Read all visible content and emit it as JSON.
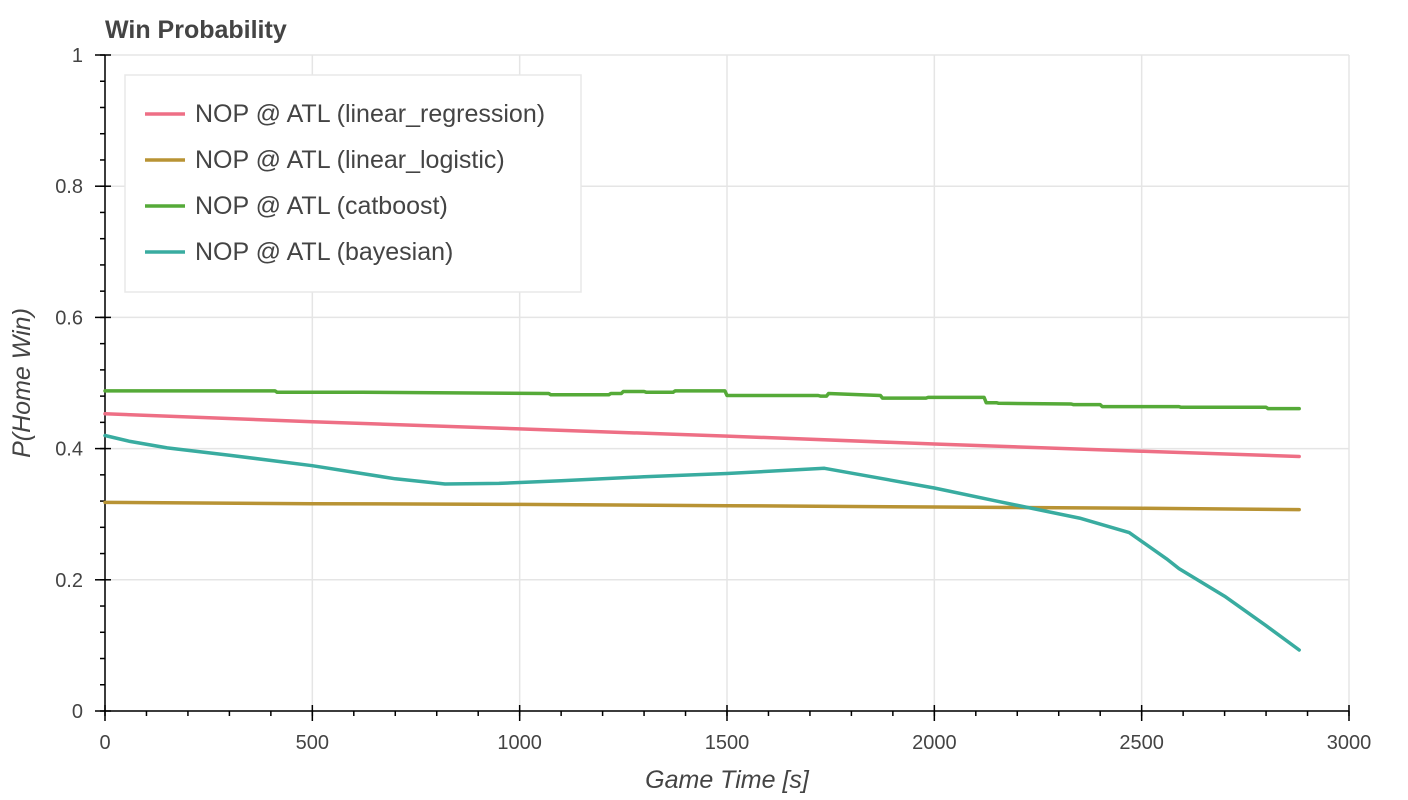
{
  "chart_data": {
    "type": "line",
    "title": "Win Probability",
    "xlabel": "Game Time [s]",
    "ylabel": "P(Home Win)",
    "xlim": [
      0,
      3000
    ],
    "ylim": [
      0,
      1
    ],
    "xticks": [
      0,
      500,
      1000,
      1500,
      2000,
      2500,
      3000
    ],
    "yticks": [
      0,
      0.2,
      0.4,
      0.6,
      0.8,
      1
    ],
    "xtick_labels": [
      "0",
      "500",
      "1000",
      "1500",
      "2000",
      "2500",
      "3000"
    ],
    "ytick_labels": [
      "0",
      "0.2",
      "0.4",
      "0.6",
      "0.8",
      "1"
    ],
    "grid": true,
    "legend_position": "top-left",
    "series": [
      {
        "name": "NOP @ ATL (linear_regression)",
        "color": "#ee6f85",
        "x": [
          0,
          500,
          1000,
          1500,
          2000,
          2500,
          2880
        ],
        "y": [
          0.453,
          0.441,
          0.43,
          0.419,
          0.407,
          0.396,
          0.388
        ]
      },
      {
        "name": "NOP @ ATL (linear_logistic)",
        "color": "#b89334",
        "x": [
          0,
          500,
          1000,
          1500,
          2000,
          2500,
          2880
        ],
        "y": [
          0.318,
          0.316,
          0.315,
          0.313,
          0.311,
          0.309,
          0.307
        ]
      },
      {
        "name": "NOP @ ATL (catboost)",
        "color": "#55aa38",
        "x": [
          0,
          410,
          415,
          620,
          1070,
          1075,
          1130,
          1135,
          1215,
          1220,
          1245,
          1250,
          1300,
          1305,
          1370,
          1375,
          1495,
          1500,
          1720,
          1725,
          1740,
          1745,
          1870,
          1875,
          1980,
          1985,
          2120,
          2125,
          2150,
          2155,
          2330,
          2335,
          2400,
          2405,
          2590,
          2595,
          2800,
          2805,
          2880
        ],
        "y": [
          0.488,
          0.488,
          0.486,
          0.486,
          0.484,
          0.482,
          0.482,
          0.482,
          0.482,
          0.484,
          0.484,
          0.487,
          0.487,
          0.486,
          0.486,
          0.488,
          0.488,
          0.481,
          0.481,
          0.48,
          0.48,
          0.484,
          0.481,
          0.477,
          0.477,
          0.478,
          0.478,
          0.47,
          0.47,
          0.469,
          0.468,
          0.467,
          0.467,
          0.464,
          0.464,
          0.463,
          0.463,
          0.461,
          0.461
        ]
      },
      {
        "name": "NOP @ ATL (bayesian)",
        "color": "#39aca0",
        "x": [
          0,
          60,
          150,
          300,
          500,
          700,
          820,
          950,
          1100,
          1300,
          1500,
          1735,
          1850,
          2000,
          2150,
          2350,
          2470,
          2560,
          2590,
          2700,
          2800,
          2880
        ],
        "y": [
          0.42,
          0.411,
          0.401,
          0.39,
          0.374,
          0.354,
          0.346,
          0.347,
          0.351,
          0.357,
          0.362,
          0.37,
          0.357,
          0.34,
          0.32,
          0.294,
          0.272,
          0.232,
          0.217,
          0.175,
          0.13,
          0.093
        ]
      }
    ]
  }
}
